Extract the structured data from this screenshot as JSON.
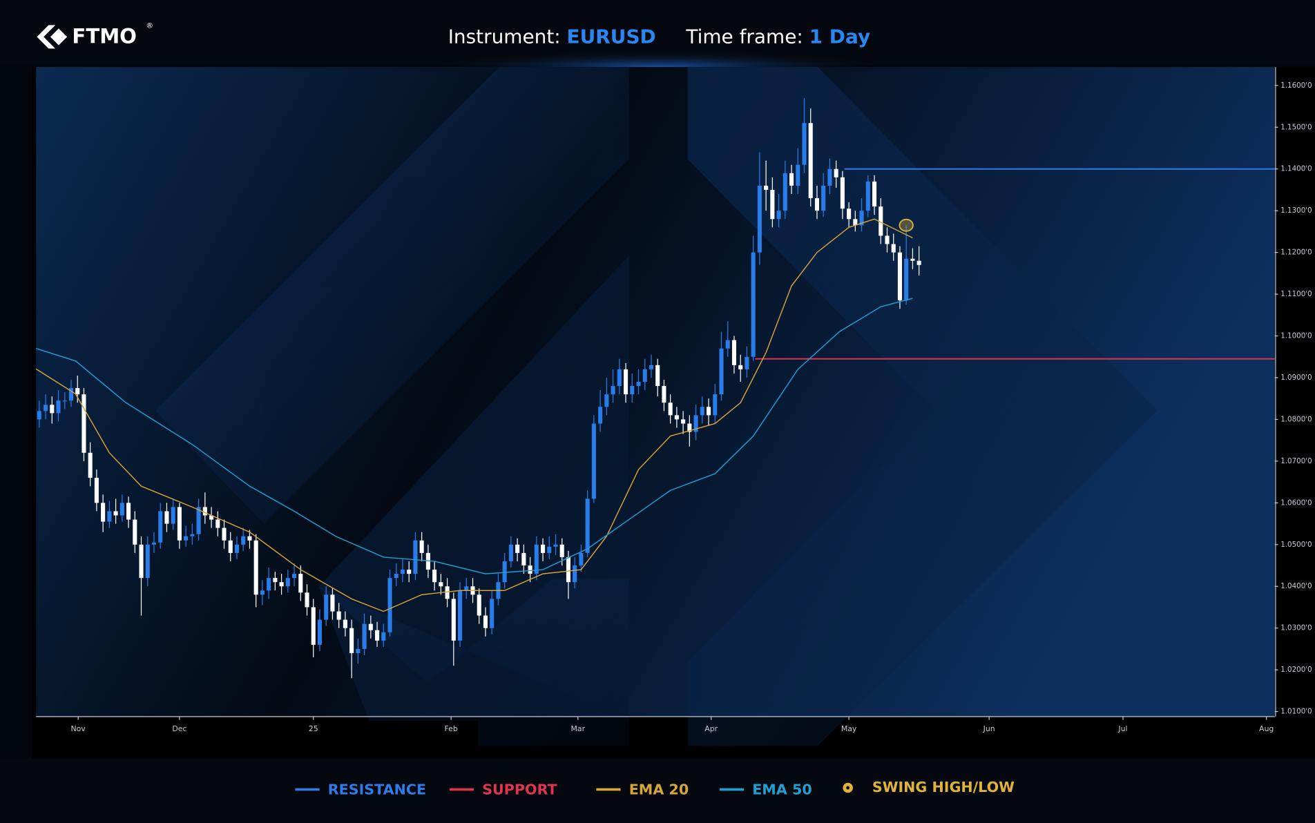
{
  "header": {
    "logo": "FTMO",
    "logo_mark": "®",
    "instrument_label": "Instrument:",
    "instrument": "EURUSD",
    "timeframe_label": "Time frame:",
    "timeframe": "1 Day"
  },
  "chart_data": {
    "type": "candlestick",
    "up_color": "#2a7de8",
    "down_color": "#ffffff",
    "open": [
      1.08,
      1.082,
      1.0835,
      1.0815,
      1.0845,
      1.0845,
      1.0875,
      1.086,
      1.072,
      1.066,
      1.06,
      1.0555,
      1.058,
      1.057,
      1.06,
      1.056,
      1.05,
      1.042,
      1.05,
      1.0505,
      1.058,
      1.055,
      1.059,
      1.051,
      1.052,
      1.0525,
      1.059,
      1.057,
      1.056,
      1.054,
      1.051,
      1.048,
      1.05,
      1.052,
      1.051,
      1.038,
      1.039,
      1.042,
      1.041,
      1.04,
      1.042,
      1.043,
      1.0385,
      1.035,
      1.026,
      1.032,
      1.038,
      1.034,
      1.032,
      1.03,
      1.024,
      1.025,
      1.031,
      1.0295,
      1.027,
      1.029,
      1.042,
      1.043,
      1.044,
      1.043,
      1.051,
      1.048,
      1.044,
      1.041,
      1.04,
      1.037,
      1.027,
      1.039,
      1.04,
      1.038,
      1.033,
      1.03,
      1.037,
      1.041,
      1.046,
      1.05,
      1.048,
      1.045,
      1.043,
      1.05,
      1.048,
      1.0495,
      1.05,
      1.047,
      1.041,
      1.045,
      1.048,
      1.061,
      1.079,
      1.083,
      1.086,
      1.088,
      1.092,
      1.086,
      1.088,
      1.089,
      1.092,
      1.093,
      1.088,
      1.084,
      1.081,
      1.08,
      1.079,
      1.077,
      1.081,
      1.083,
      1.081,
      1.086,
      1.097,
      1.099,
      1.093,
      1.092,
      1.095,
      1.12,
      1.136,
      1.135,
      1.128,
      1.13,
      1.139,
      1.136,
      1.141,
      1.151,
      1.133,
      1.13,
      1.136,
      1.14,
      1.138,
      1.1305,
      1.128,
      1.1265,
      1.13,
      1.137,
      1.131,
      1.124,
      1.122,
      1.12,
      1.1085,
      1.1185,
      1.118
    ],
    "high": [
      1.0845,
      1.086,
      1.0855,
      1.087,
      1.0865,
      1.0895,
      1.0905,
      1.0875,
      1.0745,
      1.068,
      1.062,
      1.0605,
      1.061,
      1.062,
      1.0615,
      1.058,
      1.052,
      1.052,
      1.053,
      1.06,
      1.06,
      1.061,
      1.06,
      1.0545,
      1.055,
      1.061,
      1.0625,
      1.059,
      1.058,
      1.056,
      1.053,
      1.052,
      1.054,
      1.0535,
      1.0525,
      1.0415,
      1.0445,
      1.0435,
      1.043,
      1.044,
      1.0455,
      1.045,
      1.0405,
      1.037,
      1.0345,
      1.04,
      1.0395,
      1.036,
      1.034,
      1.032,
      1.0275,
      1.0335,
      1.033,
      1.0315,
      1.031,
      1.044,
      1.0455,
      1.0465,
      1.046,
      1.053,
      1.053,
      1.05,
      1.046,
      1.043,
      1.042,
      1.0385,
      1.041,
      1.042,
      1.042,
      1.0395,
      1.035,
      1.039,
      1.043,
      1.048,
      1.052,
      1.0515,
      1.05,
      1.047,
      1.052,
      1.0515,
      1.052,
      1.0525,
      1.0515,
      1.0485,
      1.047,
      1.05,
      1.063,
      1.081,
      1.087,
      1.09,
      1.092,
      1.0945,
      1.0935,
      1.091,
      1.092,
      1.0945,
      1.0955,
      1.0945,
      1.0895,
      1.086,
      1.083,
      1.082,
      1.081,
      1.0835,
      1.0855,
      1.085,
      1.0885,
      1.101,
      1.1035,
      1.1,
      1.0955,
      1.0975,
      1.124,
      1.144,
      1.142,
      1.138,
      1.134,
      1.142,
      1.141,
      1.145,
      1.157,
      1.1545,
      1.136,
      1.139,
      1.1425,
      1.142,
      1.1395,
      1.132,
      1.13,
      1.133,
      1.1385,
      1.1385,
      1.133,
      1.126,
      1.1245,
      1.1215,
      1.1265,
      1.121,
      1.1215
    ],
    "low": [
      1.078,
      1.08,
      1.079,
      1.0795,
      1.0825,
      1.083,
      1.084,
      1.07,
      1.064,
      1.058,
      1.053,
      1.054,
      1.055,
      1.0555,
      1.054,
      1.048,
      1.033,
      1.04,
      1.048,
      1.049,
      1.053,
      1.0535,
      1.049,
      1.0495,
      1.05,
      1.051,
      1.055,
      1.054,
      1.052,
      1.049,
      1.046,
      1.0465,
      1.0485,
      1.049,
      1.035,
      1.0355,
      1.037,
      1.039,
      1.038,
      1.0385,
      1.04,
      1.0365,
      1.033,
      1.023,
      1.0245,
      1.0305,
      1.032,
      1.03,
      1.028,
      1.018,
      1.0215,
      1.0235,
      1.0275,
      1.0255,
      1.0255,
      1.028,
      1.04,
      1.041,
      1.041,
      1.0415,
      1.046,
      1.042,
      1.039,
      1.038,
      1.035,
      1.021,
      1.0255,
      1.037,
      1.036,
      1.031,
      1.028,
      1.0285,
      1.0355,
      1.0395,
      1.0445,
      1.046,
      1.043,
      1.041,
      1.0415,
      1.046,
      1.0465,
      1.0475,
      1.045,
      1.037,
      1.0395,
      1.0435,
      1.047,
      1.06,
      1.077,
      1.081,
      1.084,
      1.086,
      1.084,
      1.084,
      1.086,
      1.087,
      1.09,
      1.0855,
      1.082,
      1.079,
      1.078,
      1.0765,
      1.0735,
      1.075,
      1.079,
      1.0785,
      1.079,
      1.0845,
      1.095,
      1.091,
      1.089,
      1.09,
      1.094,
      1.117,
      1.13,
      1.126,
      1.126,
      1.128,
      1.134,
      1.134,
      1.139,
      1.131,
      1.128,
      1.1285,
      1.134,
      1.1355,
      1.128,
      1.126,
      1.125,
      1.125,
      1.1285,
      1.129,
      1.122,
      1.12,
      1.118,
      1.1065,
      1.1075,
      1.116,
      1.1145
    ],
    "close": [
      1.082,
      1.0835,
      1.0815,
      1.0845,
      1.0845,
      1.0875,
      1.086,
      1.072,
      1.066,
      1.06,
      1.0555,
      1.058,
      1.057,
      1.06,
      1.056,
      1.05,
      1.042,
      1.05,
      1.0505,
      1.058,
      1.055,
      1.059,
      1.051,
      1.052,
      1.0525,
      1.059,
      1.057,
      1.056,
      1.054,
      1.051,
      1.048,
      1.05,
      1.052,
      1.051,
      1.038,
      1.039,
      1.042,
      1.041,
      1.04,
      1.042,
      1.043,
      1.0385,
      1.035,
      1.026,
      1.032,
      1.038,
      1.034,
      1.032,
      1.03,
      1.024,
      1.025,
      1.031,
      1.0295,
      1.027,
      1.029,
      1.042,
      1.043,
      1.044,
      1.043,
      1.051,
      1.048,
      1.044,
      1.041,
      1.04,
      1.037,
      1.027,
      1.039,
      1.04,
      1.038,
      1.033,
      1.03,
      1.037,
      1.041,
      1.046,
      1.05,
      1.048,
      1.045,
      1.043,
      1.05,
      1.048,
      1.0495,
      1.05,
      1.047,
      1.041,
      1.045,
      1.048,
      1.061,
      1.079,
      1.083,
      1.086,
      1.088,
      1.092,
      1.086,
      1.088,
      1.089,
      1.092,
      1.093,
      1.088,
      1.084,
      1.081,
      1.08,
      1.079,
      1.077,
      1.081,
      1.083,
      1.081,
      1.086,
      1.097,
      1.099,
      1.093,
      1.092,
      1.095,
      1.12,
      1.136,
      1.135,
      1.128,
      1.13,
      1.139,
      1.136,
      1.141,
      1.151,
      1.133,
      1.13,
      1.136,
      1.14,
      1.138,
      1.1305,
      1.128,
      1.1265,
      1.13,
      1.137,
      1.131,
      1.124,
      1.122,
      1.12,
      1.1085,
      1.1185,
      1.118,
      1.117
    ],
    "series": [
      {
        "name": "EMA 20",
        "color": "#d7a53c",
        "x": [
          -0.5,
          5.7,
          11,
          16,
          24,
          33,
          41,
          49,
          54,
          60,
          66,
          73,
          79,
          85,
          89,
          94,
          99,
          106,
          110,
          114,
          118,
          122,
          127,
          131,
          137
        ],
        "values": [
          1.0921,
          1.0861,
          1.072,
          1.064,
          1.059,
          1.053,
          1.044,
          1.037,
          1.034,
          1.038,
          1.039,
          1.039,
          1.043,
          1.044,
          1.052,
          1.068,
          1.076,
          1.079,
          1.084,
          1.096,
          1.112,
          1.12,
          1.126,
          1.128,
          1.1235
        ]
      },
      {
        "name": "EMA 50",
        "color": "#1f9fd2",
        "x": [
          -0.5,
          5.7,
          13.6,
          24,
          33,
          40,
          46.5,
          54,
          62,
          70,
          79,
          86,
          92.5,
          99,
          106,
          112,
          119,
          125.5,
          132,
          137
        ],
        "values": [
          1.097,
          1.094,
          1.084,
          1.074,
          1.064,
          1.058,
          1.052,
          1.047,
          1.046,
          1.043,
          1.044,
          1.049,
          1.056,
          1.063,
          1.067,
          1.076,
          1.092,
          1.101,
          1.107,
          1.109
        ]
      }
    ],
    "levels": [
      {
        "name": "RESISTANCE",
        "color": "#2f7be8",
        "value": 1.14,
        "x_start": 126.3
      },
      {
        "name": "SUPPORT",
        "color": "#e0344f",
        "value": 1.0945,
        "x_start": 112.3
      }
    ],
    "markers": [
      {
        "name": "SWING HIGH/LOW",
        "color": "#e0b43c",
        "x": 136,
        "value": 1.1265
      }
    ],
    "xlim": [
      -0.5,
      193.8
    ],
    "xticks": [
      {
        "value": 6.1,
        "label": "Nov"
      },
      {
        "value": 22,
        "label": "Dec"
      },
      {
        "value": 43,
        "label": "25"
      },
      {
        "value": 64.6,
        "label": "Feb"
      },
      {
        "value": 84.5,
        "label": "Mar"
      },
      {
        "value": 105.4,
        "label": "Apr"
      },
      {
        "value": 127,
        "label": "May"
      },
      {
        "value": 149,
        "label": "Jun"
      },
      {
        "value": 170,
        "label": "Jul"
      },
      {
        "value": 192.5,
        "label": "Aug"
      }
    ],
    "ylim": [
      1.0088,
      1.16442
    ],
    "yticks": [
      {
        "value": 1.01,
        "label": "1.0100'0"
      },
      {
        "value": 1.02,
        "label": "1.0200'0"
      },
      {
        "value": 1.03,
        "label": "1.0300'0"
      },
      {
        "value": 1.04,
        "label": "1.0400'0"
      },
      {
        "value": 1.05,
        "label": "1.0500'0"
      },
      {
        "value": 1.06,
        "label": "1.0600'0"
      },
      {
        "value": 1.07,
        "label": "1.0700'0"
      },
      {
        "value": 1.08,
        "label": "1.0800'0"
      },
      {
        "value": 1.09,
        "label": "1.0900'0"
      },
      {
        "value": 1.1,
        "label": "1.1000'0"
      },
      {
        "value": 1.11,
        "label": "1.1100'0"
      },
      {
        "value": 1.12,
        "label": "1.1200'0"
      },
      {
        "value": 1.13,
        "label": "1.1300'0"
      },
      {
        "value": 1.14,
        "label": "1.1400'0"
      },
      {
        "value": 1.15,
        "label": "1.1500'0"
      },
      {
        "value": 1.16,
        "label": "1.1600'0"
      }
    ]
  }
}
